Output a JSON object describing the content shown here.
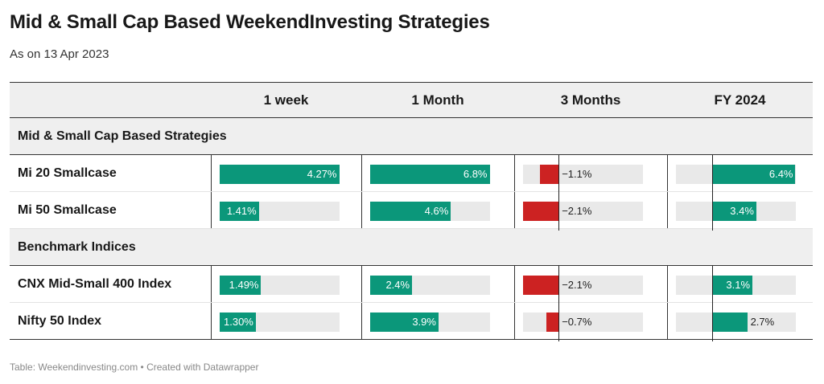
{
  "title": "Mid & Small Cap Based WeekendInvesting Strategies",
  "subtitle": "As on 13 Apr 2023",
  "footer": "Table: Weekendinvesting.com • Created with Datawrapper",
  "colors": {
    "positive": "#0b977a",
    "negative": "#cc2222",
    "track": "#e9e9e9"
  },
  "chart_data": {
    "type": "table",
    "columns": [
      "1 week",
      "1 Month",
      "3 Months",
      "FY 2024"
    ],
    "column_ranges": [
      [
        0,
        4.27
      ],
      [
        0,
        6.8
      ],
      [
        -2.1,
        4.9
      ],
      [
        -2.8,
        6.4
      ]
    ],
    "groups": [
      {
        "label": "Mid & Small Cap Based Strategies",
        "rows": [
          {
            "name": "Mi 20 Smallcase",
            "values": [
              4.27,
              6.8,
              -1.1,
              6.4
            ],
            "labels": [
              "4.27%",
              "6.8%",
              "−1.1%",
              "6.4%"
            ]
          },
          {
            "name": "Mi 50 Smallcase",
            "values": [
              1.41,
              4.6,
              -2.1,
              3.4
            ],
            "labels": [
              "1.41%",
              "4.6%",
              "−2.1%",
              "3.4%"
            ]
          }
        ]
      },
      {
        "label": "Benchmark Indices",
        "rows": [
          {
            "name": "CNX Mid-Small 400 Index",
            "values": [
              1.49,
              2.4,
              -2.1,
              3.1
            ],
            "labels": [
              "1.49%",
              "2.4%",
              "−2.1%",
              "3.1%"
            ]
          },
          {
            "name": "Nifty 50 Index",
            "values": [
              1.3,
              3.9,
              -0.7,
              2.7
            ],
            "labels": [
              "1.30%",
              "3.9%",
              "−0.7%",
              "2.7%"
            ]
          }
        ]
      }
    ]
  }
}
